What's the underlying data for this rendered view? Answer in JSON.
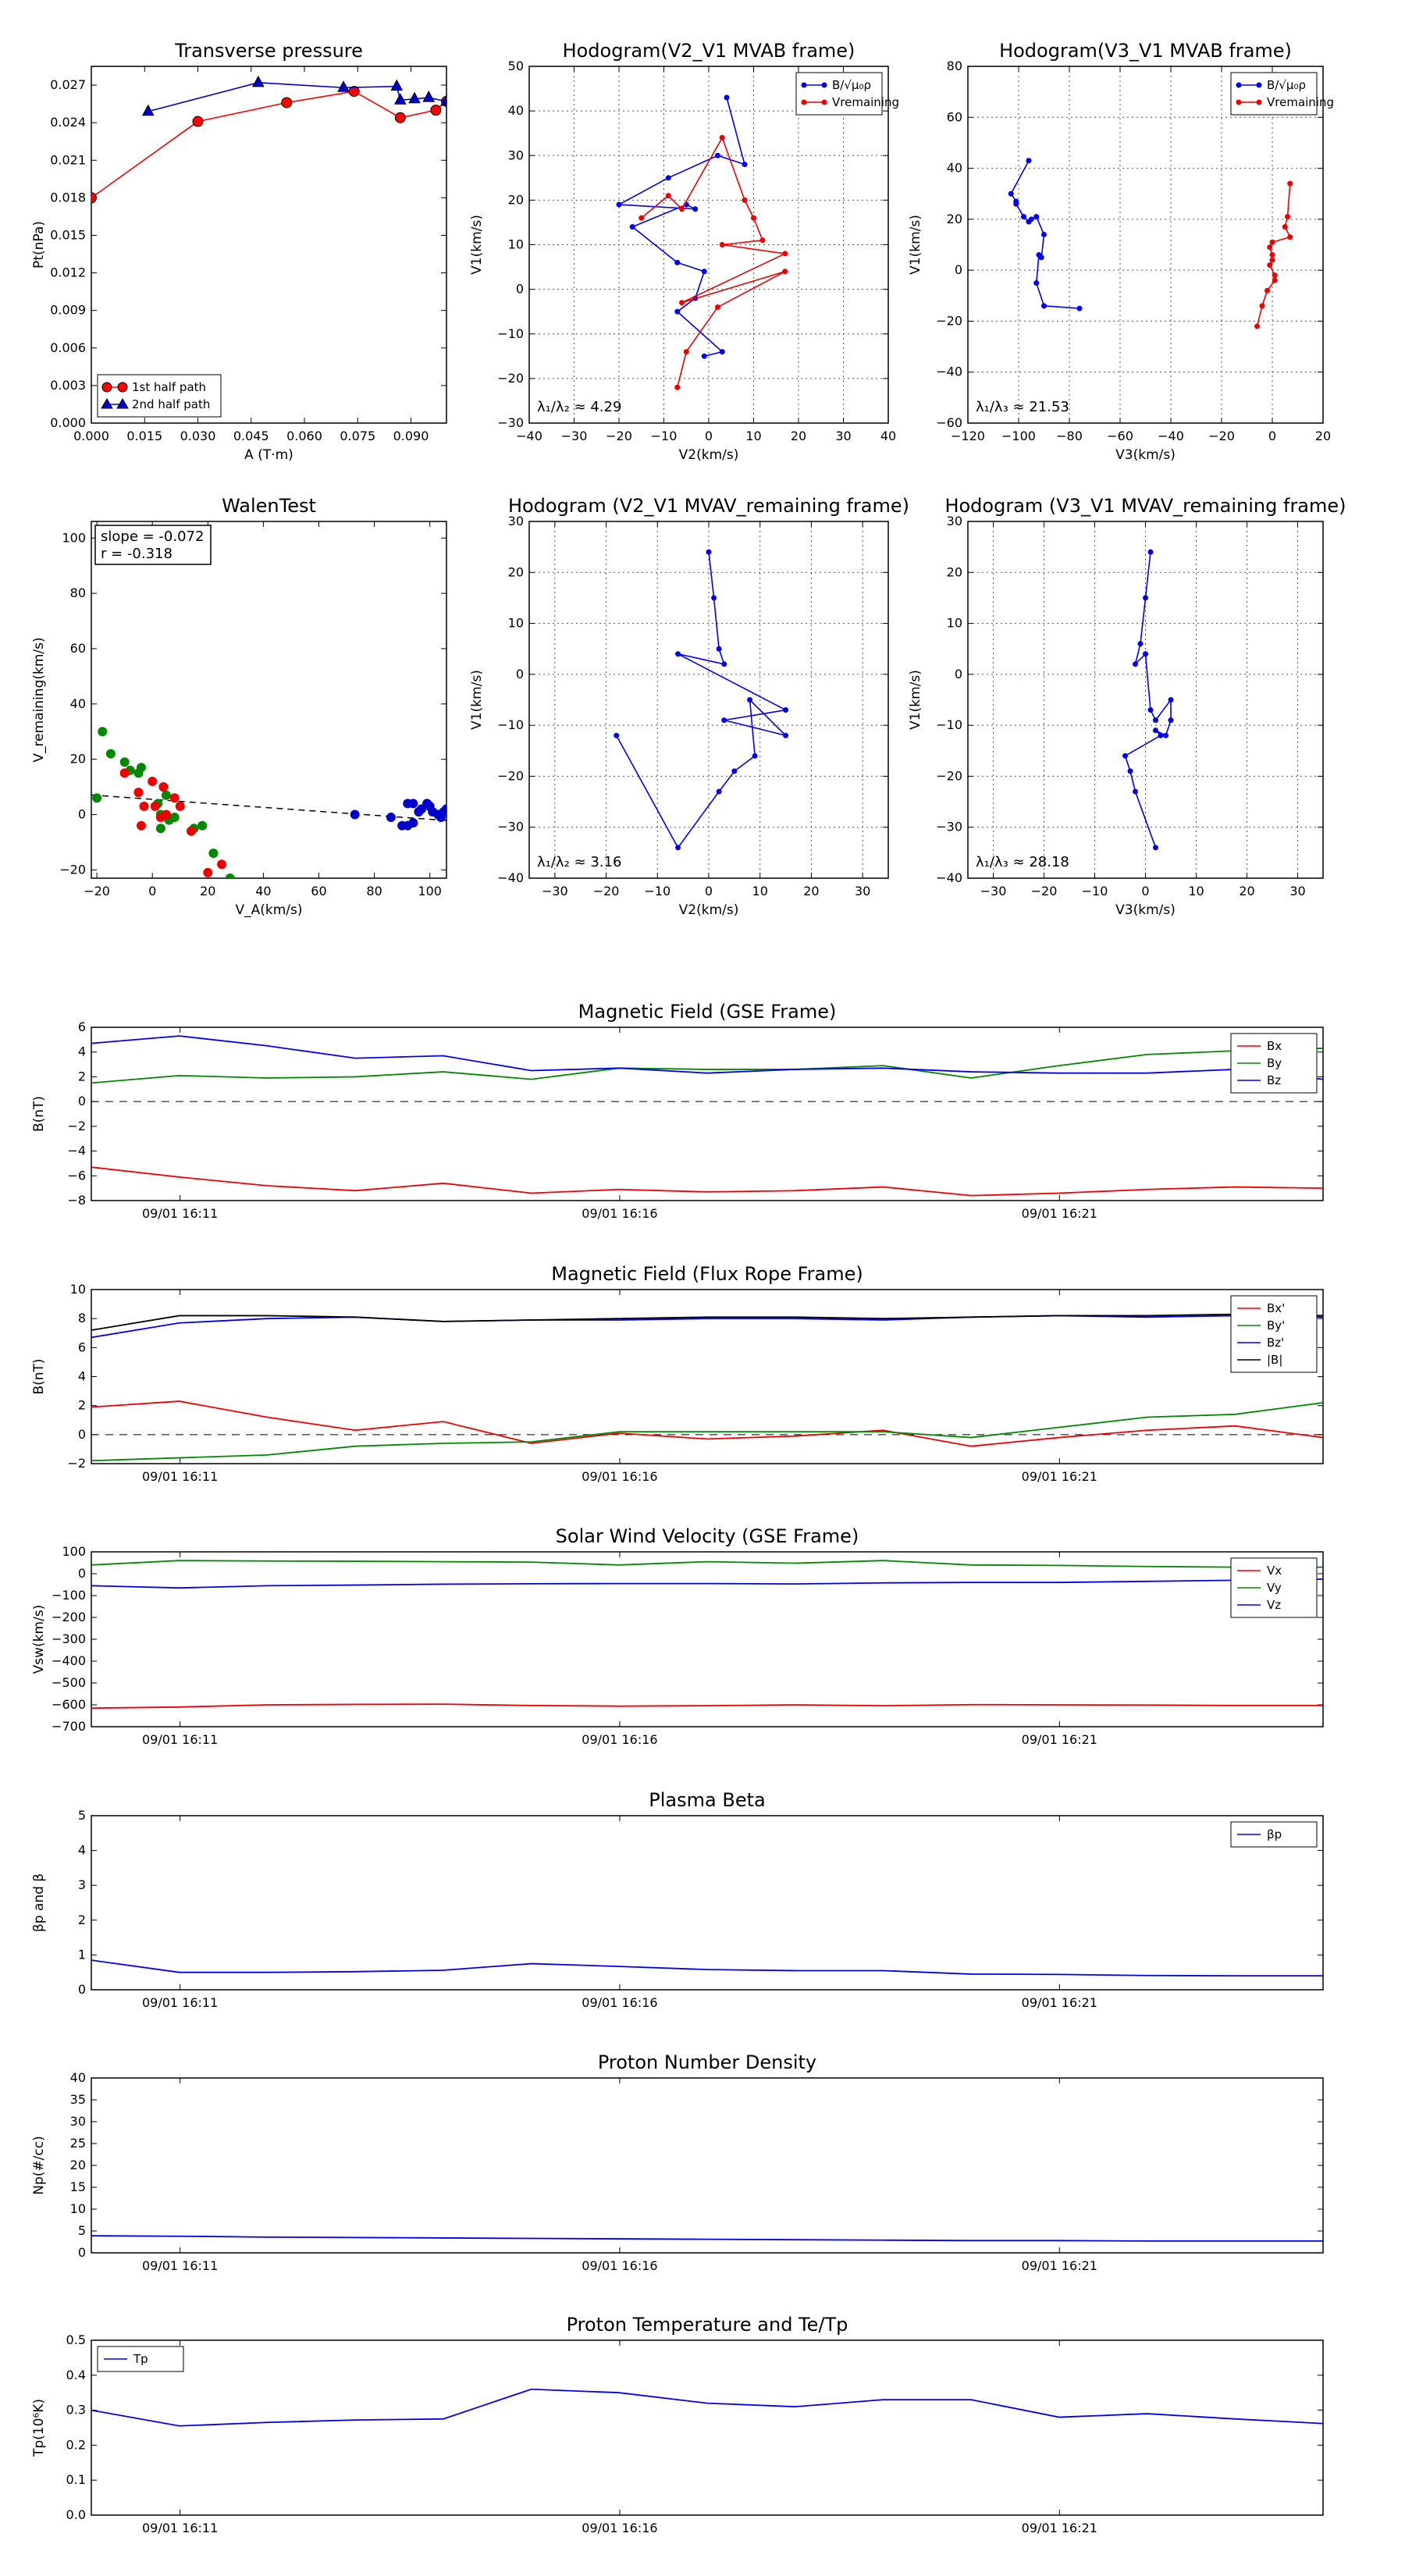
{
  "chart_data": [
    {
      "id": "tp",
      "type": "scatter",
      "title": "Transverse pressure",
      "xlabel": "A (T·m)",
      "ylabel": "Pt(nPa)",
      "xlim": [
        0,
        0.1
      ],
      "ylim": [
        0,
        0.0285
      ],
      "xticks": [
        "0.000",
        "0.015",
        "0.030",
        "0.045",
        "0.060",
        "0.075",
        "0.090"
      ],
      "yticks": [
        "0.000",
        "0.003",
        "0.006",
        "0.009",
        "0.012",
        "0.015",
        "0.018",
        "0.021",
        "0.024",
        "0.027"
      ],
      "grid": false,
      "legend": "lower-left",
      "series": [
        {
          "name": "1st half path",
          "color": "#ff0000",
          "marker": "circle",
          "x": [
            0.0,
            0.03,
            0.055,
            0.074,
            0.087,
            0.097,
            0.1
          ],
          "y": [
            0.018,
            0.0241,
            0.0256,
            0.0265,
            0.0244,
            0.025,
            0.0257
          ]
        },
        {
          "name": "2nd half path",
          "color": "#0000cc",
          "marker": "triangle",
          "x": [
            0.016,
            0.047,
            0.071,
            0.086,
            0.087,
            0.091,
            0.095,
            0.1
          ],
          "y": [
            0.0249,
            0.0272,
            0.0268,
            0.0269,
            0.0258,
            0.0259,
            0.026,
            0.0257
          ]
        }
      ]
    },
    {
      "id": "h1",
      "type": "line",
      "title": "Hodogram(V2_V1 MVAB frame)",
      "xlabel": "V2(km/s)",
      "ylabel": "V1(km/s)",
      "xlim": [
        -40,
        40
      ],
      "ylim": [
        -30,
        50
      ],
      "xticks": [
        "−40",
        "−30",
        "−20",
        "−10",
        "0",
        "10",
        "20",
        "30",
        "40"
      ],
      "yticks": [
        "−30",
        "−20",
        "−10",
        "0",
        "10",
        "20",
        "30",
        "40",
        "50"
      ],
      "grid": true,
      "legend": "top-right",
      "annotation": "λ₁/λ₂ ≈ 4.29",
      "series": [
        {
          "name": "B/√μ₀ρ",
          "color": "#0000ee",
          "x": [
            4,
            8,
            2,
            -9,
            -20,
            -3,
            -5,
            -17,
            -7,
            -1,
            -3,
            -7,
            3,
            -1
          ],
          "y": [
            43,
            28,
            30,
            25,
            19,
            18,
            19,
            14,
            6,
            4,
            -2,
            -5,
            -14,
            -15
          ]
        },
        {
          "name": "Vremaining",
          "color": "#ee0000",
          "x": [
            -15,
            -9,
            -6,
            3,
            8,
            10,
            12,
            3,
            17,
            -6,
            17,
            2,
            -5,
            -7
          ],
          "y": [
            16,
            21,
            18,
            34,
            20,
            16,
            11,
            10,
            8,
            -3,
            4,
            -4,
            -14,
            -22
          ]
        }
      ]
    },
    {
      "id": "h2",
      "type": "line",
      "title": "Hodogram(V3_V1 MVAB frame)",
      "xlabel": "V3(km/s)",
      "ylabel": "V1(km/s)",
      "xlim": [
        -120,
        20
      ],
      "ylim": [
        -60,
        80
      ],
      "xticks": [
        "−120",
        "−100",
        "−80",
        "−60",
        "−40",
        "−20",
        "0",
        "20"
      ],
      "yticks": [
        "−60",
        "−40",
        "−20",
        "0",
        "20",
        "40",
        "60",
        "80"
      ],
      "grid": true,
      "legend": "top-right",
      "annotation": "λ₁/λ₃ ≈ 21.53",
      "series": [
        {
          "name": "B/√μ₀ρ",
          "color": "#0000ee",
          "x": [
            -96,
            -103,
            -101,
            -101,
            -98,
            -96,
            -95,
            -93,
            -90,
            -91,
            -92,
            -93,
            -90,
            -76
          ],
          "y": [
            43,
            30,
            27,
            26,
            21,
            19,
            20,
            21,
            14,
            5,
            6,
            -5,
            -14,
            -15
          ]
        },
        {
          "name": "Vremaining",
          "color": "#ee0000",
          "x": [
            7,
            6,
            5,
            7,
            0,
            -1,
            0,
            0,
            -1,
            1,
            1,
            -2,
            -4,
            -6
          ],
          "y": [
            34,
            21,
            17,
            13,
            11,
            9,
            6,
            4,
            2,
            -2,
            -4,
            -8,
            -14,
            -22
          ]
        }
      ]
    },
    {
      "id": "wt",
      "type": "scatter",
      "title": "WalenTest",
      "xlabel": "V_A(km/s)",
      "ylabel": "V_remaining(km/s)",
      "xlim": [
        -22,
        106
      ],
      "ylim": [
        -23,
        106
      ],
      "xticks": [
        "−20",
        "0",
        "20",
        "40",
        "60",
        "80",
        "100"
      ],
      "yticks": [
        "−20",
        "0",
        "20",
        "40",
        "60",
        "80",
        "100"
      ],
      "grid": false,
      "stats": [
        "slope = -0.072",
        "r = -0.318"
      ],
      "fit": {
        "slope": -0.072,
        "intercept": 5.5
      },
      "series": [
        {
          "name": "",
          "color": "#008800",
          "x": [
            -20,
            -18,
            -15,
            -10,
            -8,
            -5,
            -4,
            2,
            3,
            4,
            5,
            3,
            6,
            8,
            15,
            18,
            22,
            28
          ],
          "y": [
            6,
            30,
            22,
            19,
            16,
            15,
            17,
            4,
            0,
            10,
            7,
            -5,
            -2,
            -1,
            -5,
            -4,
            -14,
            -23
          ]
        },
        {
          "name": "",
          "color": "#ee0000",
          "x": [
            -10,
            -5,
            -3,
            0,
            1,
            -4,
            4,
            5,
            8,
            10,
            14,
            25,
            20,
            3
          ],
          "y": [
            15,
            8,
            3,
            12,
            3,
            -4,
            10,
            0,
            6,
            3,
            -6,
            -18,
            -21,
            -1
          ]
        },
        {
          "name": "",
          "color": "#0000cc",
          "x": [
            73,
            86,
            90,
            92,
            94,
            96,
            97,
            99,
            100,
            101,
            103,
            104,
            105,
            106,
            92,
            94
          ],
          "y": [
            0,
            -1,
            -4,
            4,
            4,
            1,
            2,
            4,
            3,
            1,
            0,
            -1,
            1,
            2,
            -4,
            -3
          ]
        }
      ]
    },
    {
      "id": "h3",
      "type": "line",
      "title": "Hodogram (V2_V1 MVAV_remaining frame)",
      "xlabel": "V2(km/s)",
      "ylabel": "V1(km/s)",
      "xlim": [
        -35,
        35
      ],
      "ylim": [
        -40,
        30
      ],
      "xticks": [
        "−30",
        "−20",
        "−10",
        "0",
        "10",
        "20",
        "30"
      ],
      "yticks": [
        "−40",
        "−30",
        "−20",
        "−10",
        "0",
        "10",
        "20",
        "30"
      ],
      "grid": true,
      "annotation": "λ₁/λ₂ ≈ 3.16",
      "series": [
        {
          "name": "",
          "color": "#0000ee",
          "x": [
            0,
            1,
            2,
            3,
            -6,
            15,
            3,
            15,
            8,
            9,
            5,
            2,
            -6,
            -18
          ],
          "y": [
            24,
            15,
            5,
            2,
            4,
            -7,
            -9,
            -12,
            -5,
            -16,
            -19,
            -23,
            -34,
            -12
          ]
        }
      ]
    },
    {
      "id": "h4",
      "type": "line",
      "title": "Hodogram (V3_V1 MVAV_remaining frame)",
      "xlabel": "V3(km/s)",
      "ylabel": "V1(km/s)",
      "xlim": [
        -35,
        35
      ],
      "ylim": [
        -40,
        30
      ],
      "xticks": [
        "−30",
        "−20",
        "−10",
        "0",
        "10",
        "20",
        "30"
      ],
      "yticks": [
        "−40",
        "−30",
        "−20",
        "−10",
        "0",
        "10",
        "20",
        "30"
      ],
      "grid": true,
      "annotation": "λ₁/λ₃ ≈ 28.18",
      "series": [
        {
          "name": "",
          "color": "#0000ee",
          "x": [
            1,
            0,
            -1,
            -2,
            0,
            1,
            2,
            5,
            5,
            4,
            2,
            3,
            -4,
            -3,
            -2,
            2
          ],
          "y": [
            24,
            15,
            6,
            2,
            4,
            -7,
            -9,
            -5,
            -9,
            -12,
            -11,
            -12,
            -16,
            -19,
            -23,
            -34
          ]
        }
      ]
    },
    {
      "id": "ts1",
      "type": "line",
      "title": "Magnetic Field (GSE Frame)",
      "ylabel": "B(nT)",
      "ylim": [
        -8,
        6
      ],
      "yticks": [
        "−8",
        "−6",
        "−4",
        "−2",
        "0",
        "2",
        "4",
        "6"
      ],
      "xticks": [
        "09/01 16:11",
        "09/01 16:16",
        "09/01 16:21"
      ],
      "legend": "top-right",
      "zero_line": true,
      "series": [
        {
          "name": "Bx",
          "color": "#ee0000",
          "values": [
            -5.3,
            -6.1,
            -6.8,
            -7.2,
            -6.6,
            -7.4,
            -7.1,
            -7.3,
            -7.2,
            -6.9,
            -7.6,
            -7.4,
            -7.1,
            -6.9,
            -7.0
          ]
        },
        {
          "name": "By",
          "color": "#008800",
          "values": [
            1.5,
            2.1,
            1.9,
            2.0,
            2.4,
            1.8,
            2.7,
            2.6,
            2.6,
            2.9,
            1.9,
            2.9,
            3.8,
            4.1,
            4.3
          ]
        },
        {
          "name": "Bz",
          "color": "#0000ee",
          "values": [
            4.7,
            5.3,
            4.5,
            3.5,
            3.7,
            2.5,
            2.7,
            2.3,
            2.6,
            2.7,
            2.4,
            2.3,
            2.3,
            2.6,
            1.8
          ]
        }
      ]
    },
    {
      "id": "ts2",
      "type": "line",
      "title": "Magnetic Field (Flux Rope Frame)",
      "ylabel": "B(nT)",
      "ylim": [
        -2,
        10
      ],
      "yticks": [
        "−2",
        "0",
        "2",
        "4",
        "6",
        "8",
        "10"
      ],
      "xticks": [
        "09/01 16:11",
        "09/01 16:16",
        "09/01 16:21"
      ],
      "legend": "top-right",
      "zero_line": true,
      "series": [
        {
          "name": "Bx'",
          "color": "#ee0000",
          "values": [
            1.9,
            2.3,
            1.2,
            0.3,
            0.9,
            -0.6,
            0.1,
            -0.3,
            -0.1,
            0.3,
            -0.8,
            -0.2,
            0.3,
            0.6,
            -0.2
          ]
        },
        {
          "name": "By'",
          "color": "#008800",
          "values": [
            -1.8,
            -1.6,
            -1.4,
            -0.8,
            -0.6,
            -0.5,
            0.2,
            0.2,
            0.2,
            0.2,
            -0.2,
            0.5,
            1.2,
            1.4,
            2.2
          ]
        },
        {
          "name": "Bz'",
          "color": "#0000ee",
          "values": [
            6.7,
            7.7,
            8.0,
            8.1,
            7.8,
            7.9,
            7.9,
            8.0,
            8.0,
            7.9,
            8.1,
            8.2,
            8.1,
            8.2,
            8.1
          ]
        },
        {
          "name": "|B|",
          "color": "#000000",
          "values": [
            7.2,
            8.2,
            8.2,
            8.1,
            7.8,
            7.9,
            8.0,
            8.1,
            8.1,
            8.0,
            8.1,
            8.2,
            8.2,
            8.3,
            8.2
          ]
        }
      ]
    },
    {
      "id": "ts3",
      "type": "line",
      "title": "Solar Wind Velocity (GSE Frame)",
      "ylabel": "Vsw(km/s)",
      "ylim": [
        -700,
        100
      ],
      "yticks": [
        "−700",
        "−600",
        "−500",
        "−400",
        "−300",
        "−200",
        "−100",
        "0",
        "100"
      ],
      "xticks": [
        "09/01 16:11",
        "09/01 16:16",
        "09/01 16:21"
      ],
      "legend": "top-right",
      "series": [
        {
          "name": "Vx",
          "color": "#ee0000",
          "values": [
            -615,
            -610,
            -600,
            -598,
            -597,
            -603,
            -606,
            -604,
            -600,
            -604,
            -599,
            -600,
            -601,
            -603,
            -603
          ]
        },
        {
          "name": "Vy",
          "color": "#008800",
          "values": [
            40,
            60,
            58,
            57,
            55,
            53,
            40,
            55,
            48,
            60,
            40,
            38,
            33,
            30,
            30
          ]
        },
        {
          "name": "Vz",
          "color": "#0000ee",
          "values": [
            -55,
            -65,
            -55,
            -52,
            -48,
            -46,
            -45,
            -45,
            -47,
            -42,
            -40,
            -40,
            -35,
            -30,
            -25
          ]
        }
      ]
    },
    {
      "id": "ts4",
      "type": "line",
      "title": "Plasma Beta",
      "ylabel": "βp and β",
      "ylim": [
        0,
        5
      ],
      "yticks": [
        "0",
        "1",
        "2",
        "3",
        "4",
        "5"
      ],
      "xticks": [
        "09/01 16:11",
        "09/01 16:16",
        "09/01 16:21"
      ],
      "legend": "top-right",
      "series": [
        {
          "name": "βp",
          "color": "#0000ee",
          "values": [
            0.85,
            0.5,
            0.5,
            0.52,
            0.56,
            0.75,
            0.67,
            0.58,
            0.55,
            0.55,
            0.45,
            0.44,
            0.41,
            0.4,
            0.4
          ]
        }
      ]
    },
    {
      "id": "ts5",
      "type": "line",
      "title": "Proton Number Density",
      "ylabel": "Np(#/cc)",
      "ylim": [
        0,
        40
      ],
      "yticks": [
        "0",
        "5",
        "10",
        "15",
        "20",
        "25",
        "30",
        "35",
        "40"
      ],
      "xticks": [
        "09/01 16:11",
        "09/01 16:16",
        "09/01 16:21"
      ],
      "series": [
        {
          "name": "",
          "color": "#0000ee",
          "values": [
            3.9,
            3.8,
            3.6,
            3.5,
            3.4,
            3.3,
            3.2,
            3.1,
            3.0,
            2.9,
            2.8,
            2.8,
            2.7,
            2.7,
            2.7
          ]
        }
      ]
    },
    {
      "id": "ts6",
      "type": "line",
      "title": "Proton Temperature and Te/Tp",
      "ylabel": "Tp(10⁶K)",
      "ylim": [
        0,
        0.5
      ],
      "yticks": [
        "0.0",
        "0.1",
        "0.2",
        "0.3",
        "0.4",
        "0.5"
      ],
      "xticks": [
        "09/01 16:11",
        "09/01 16:16",
        "09/01 16:21"
      ],
      "legend": "top-left",
      "series": [
        {
          "name": "Tp",
          "color": "#0000ee",
          "values": [
            0.3,
            0.255,
            0.265,
            0.272,
            0.275,
            0.36,
            0.35,
            0.32,
            0.31,
            0.33,
            0.33,
            0.28,
            0.29,
            0.275,
            0.262
          ]
        }
      ]
    }
  ]
}
